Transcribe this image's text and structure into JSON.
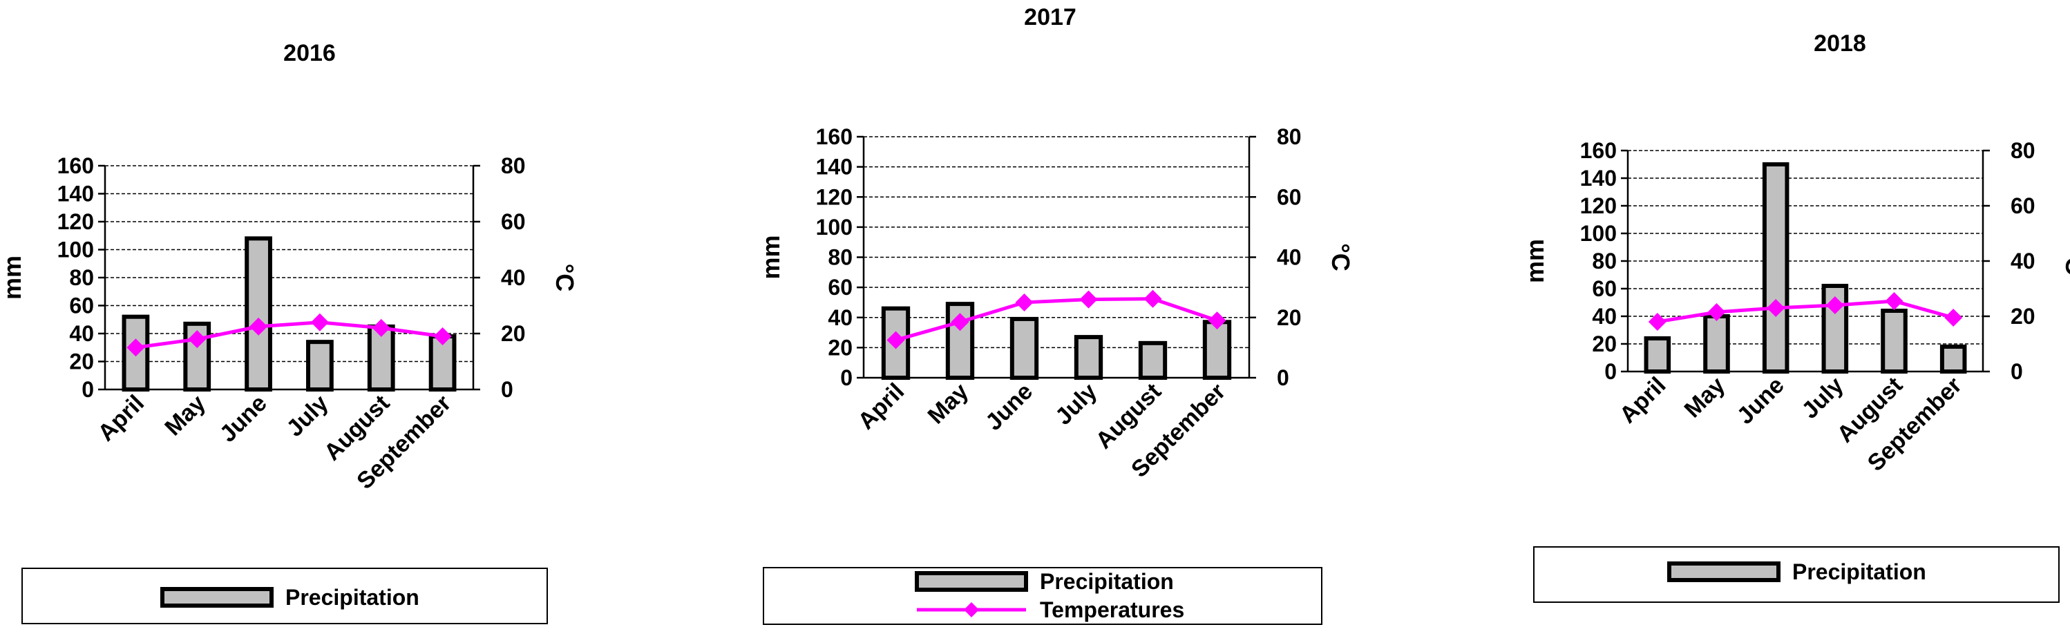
{
  "colors": {
    "bar_fill": "#c0c0c0",
    "bar_stroke": "#000000",
    "temperature_line": "#ff00ff",
    "gridline": "#000000"
  },
  "chart_data": [
    {
      "type": "bar",
      "title": "2016",
      "categories": [
        "April",
        "May",
        "June",
        "July",
        "August",
        "September"
      ],
      "ylabel": "mm",
      "ylim": [
        0,
        160
      ],
      "yticks": [
        "0",
        "20",
        "40",
        "60",
        "80",
        "100",
        "120",
        "140",
        "160"
      ],
      "y2label": "°C",
      "y2lim": [
        0,
        80
      ],
      "y2ticks": [
        "0",
        "20",
        "40",
        "60",
        "80"
      ],
      "grid": true,
      "series": [
        {
          "name": "Precipitation",
          "kind": "bar",
          "axis": "left",
          "values": [
            52,
            47,
            108,
            34,
            45,
            38
          ]
        },
        {
          "name": "Temperatures",
          "kind": "line",
          "axis": "right",
          "values": [
            15,
            18,
            22.5,
            24,
            22,
            19
          ]
        }
      ],
      "legend": [
        "Precipitation"
      ]
    },
    {
      "type": "bar",
      "title": "2017",
      "categories": [
        "April",
        "May",
        "June",
        "July",
        "August",
        "September"
      ],
      "ylabel": "mm",
      "ylim": [
        0,
        160
      ],
      "yticks": [
        "0",
        "20",
        "40",
        "60",
        "80",
        "100",
        "120",
        "140",
        "160"
      ],
      "y2label": "°C",
      "y2lim": [
        0,
        80
      ],
      "y2ticks": [
        "0",
        "20",
        "40",
        "60",
        "80"
      ],
      "grid": true,
      "series": [
        {
          "name": "Precipitation",
          "kind": "bar",
          "axis": "left",
          "values": [
            46,
            49,
            39,
            27,
            23,
            37
          ]
        },
        {
          "name": "Temperatures",
          "kind": "line",
          "axis": "right",
          "values": [
            12.5,
            18.5,
            25,
            26,
            26.2,
            19
          ]
        }
      ],
      "legend": [
        "Precipitation",
        "Temperatures"
      ]
    },
    {
      "type": "bar",
      "title": "2018",
      "categories": [
        "April",
        "May",
        "June",
        "July",
        "August",
        "September"
      ],
      "ylabel": "mm",
      "ylim": [
        0,
        160
      ],
      "yticks": [
        "0",
        "20",
        "40",
        "60",
        "80",
        "100",
        "120",
        "140",
        "160"
      ],
      "y2label": "°C",
      "y2lim": [
        0,
        80
      ],
      "y2ticks": [
        "0",
        "20",
        "40",
        "60",
        "80"
      ],
      "grid": true,
      "series": [
        {
          "name": "Precipitation",
          "kind": "bar",
          "axis": "left",
          "values": [
            24,
            40,
            150,
            62,
            44,
            18
          ]
        },
        {
          "name": "Temperatures",
          "kind": "line",
          "axis": "right",
          "values": [
            18,
            21.5,
            23,
            24,
            25.5,
            19.5
          ]
        }
      ],
      "legend": [
        "Precipitation"
      ]
    }
  ]
}
